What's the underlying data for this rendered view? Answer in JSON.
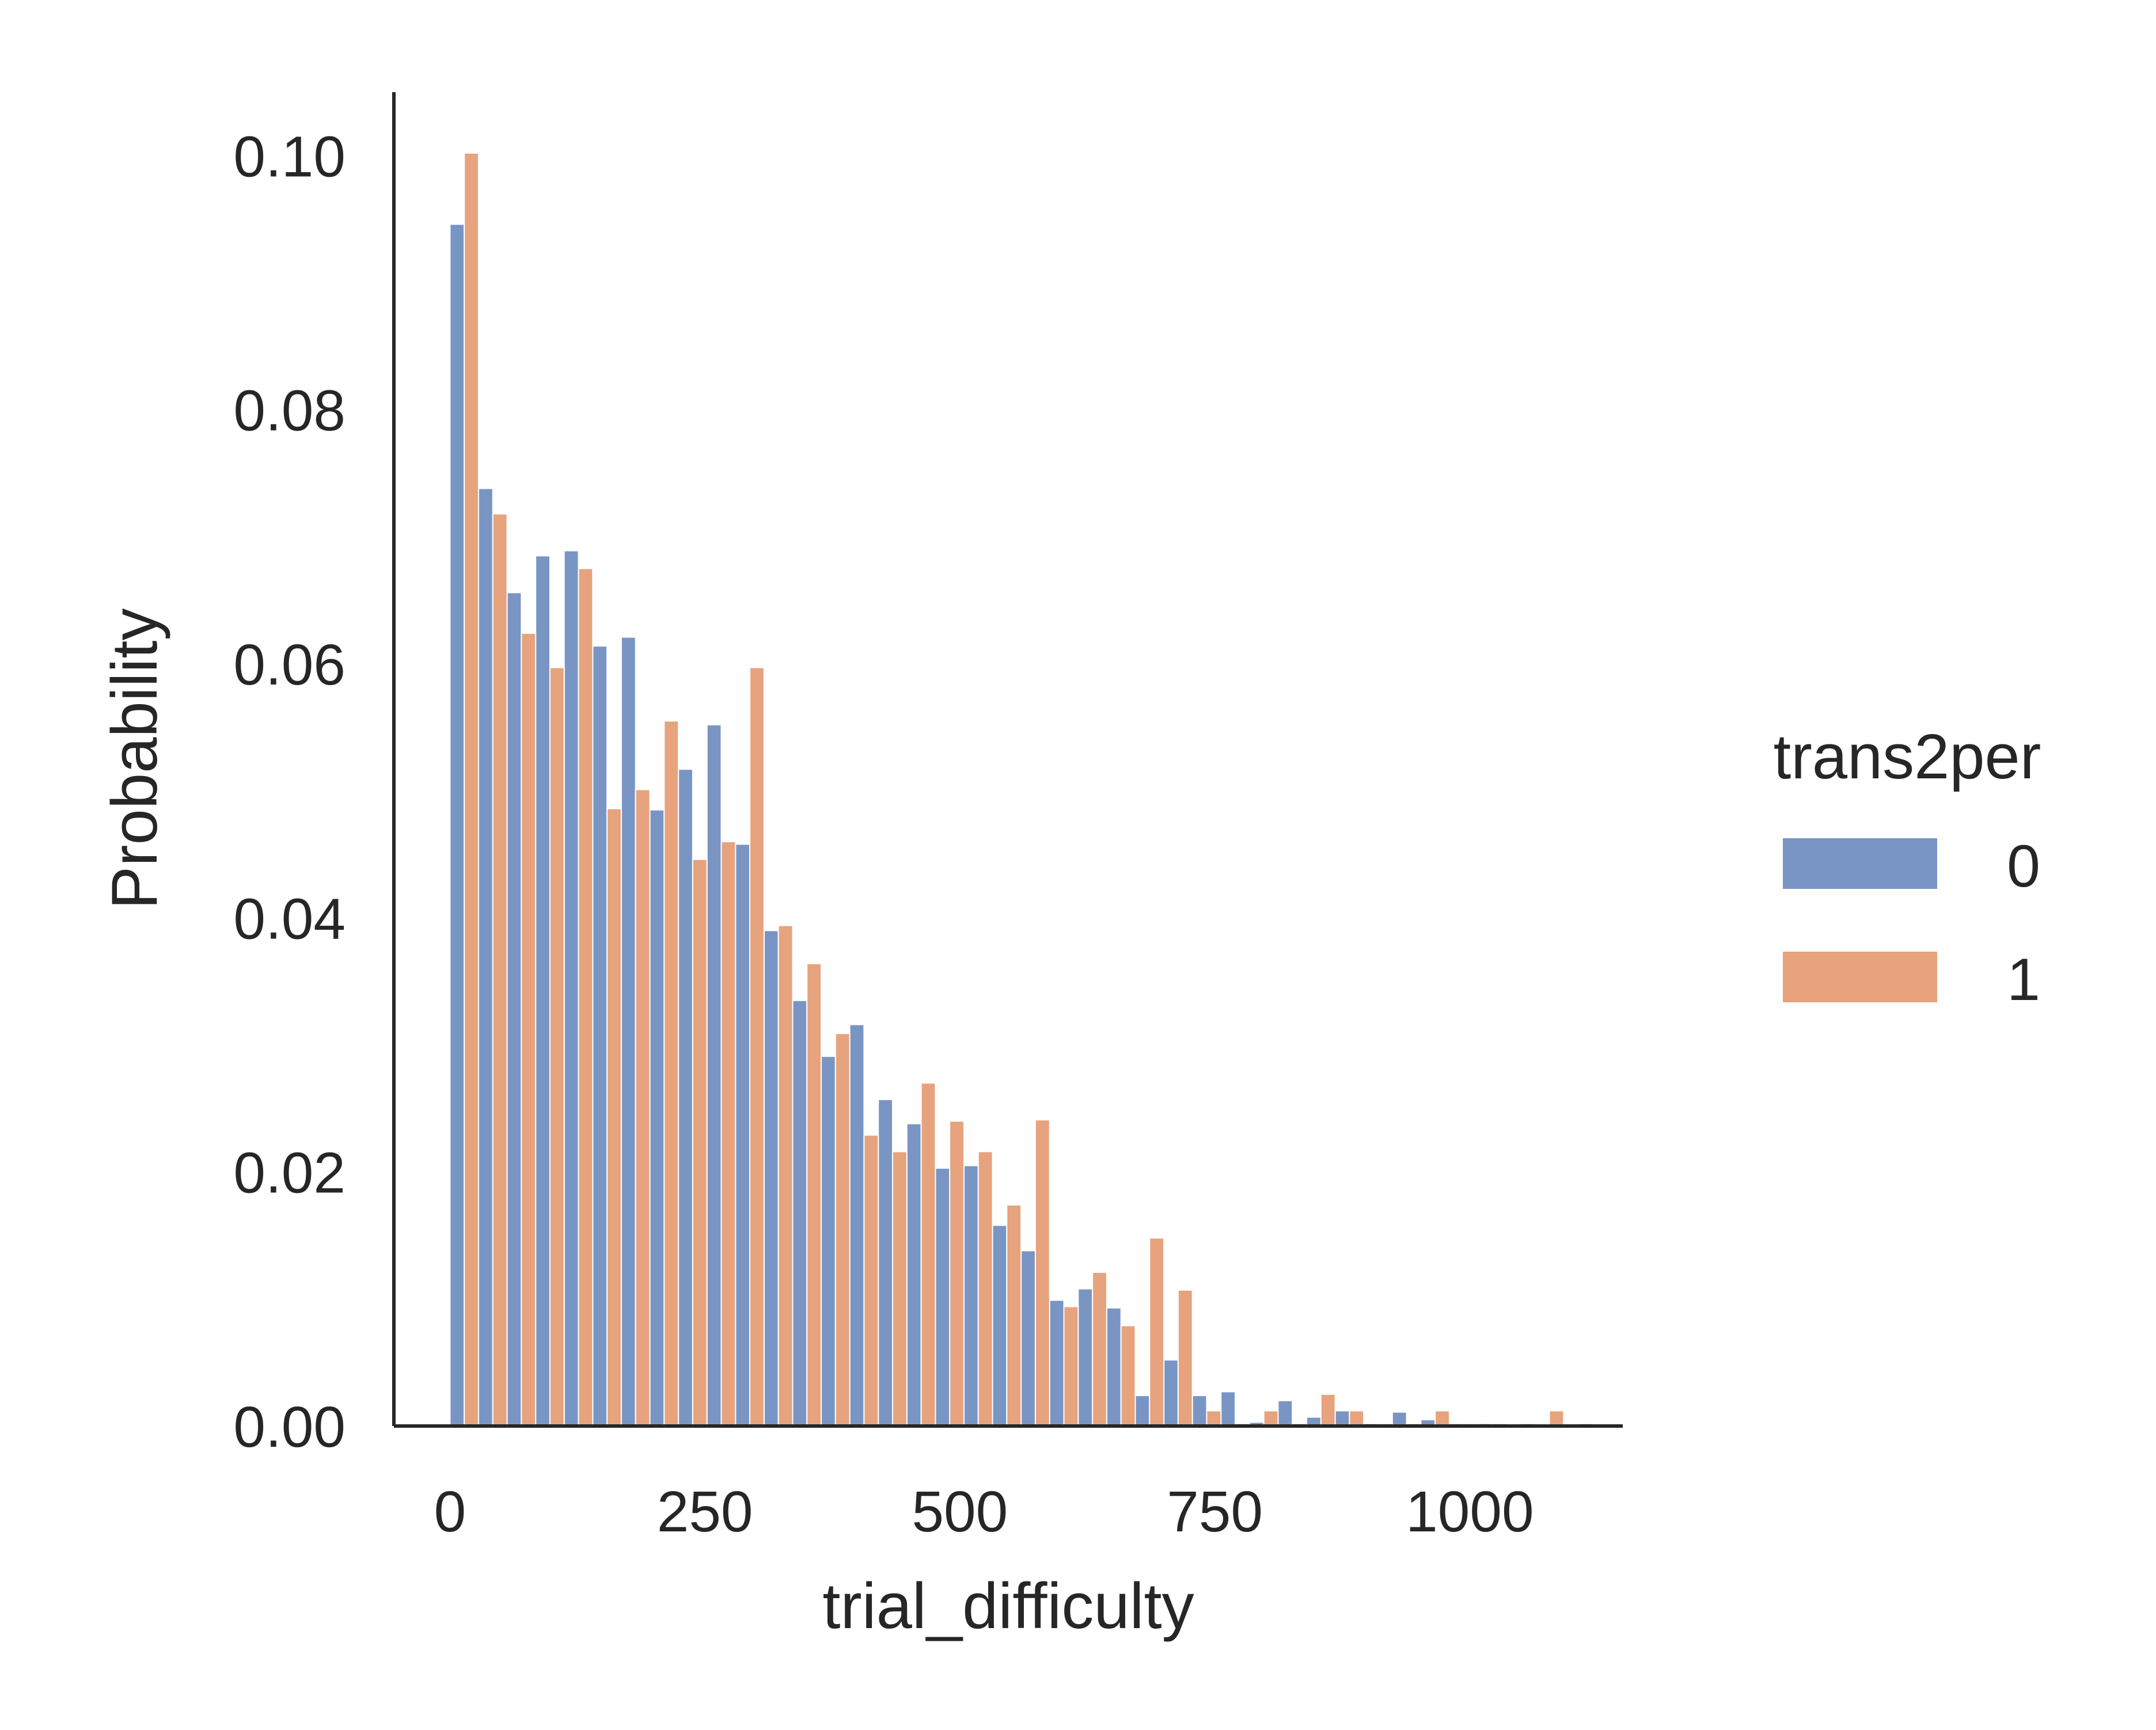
{
  "chart_data": {
    "type": "bar",
    "title": "",
    "xlabel": "trial_difficulty",
    "ylabel": "Probability",
    "xlim": [
      -55,
      1150
    ],
    "ylim": [
      0,
      0.105
    ],
    "xticks": [
      0,
      250,
      500,
      750,
      1000
    ],
    "yticks": [
      0.0,
      0.02,
      0.04,
      0.06,
      0.08,
      0.1
    ],
    "xtick_labels": [
      "0",
      "250",
      "500",
      "750",
      "1000"
    ],
    "ytick_labels": [
      "0.00",
      "0.02",
      "0.04",
      "0.06",
      "0.08",
      "0.10"
    ],
    "grid": false,
    "legend": {
      "title": "trans2per",
      "position": "right",
      "labels": [
        "0",
        "1"
      ]
    },
    "bin_width": 28,
    "bin_starts": [
      0,
      28,
      56,
      84,
      112,
      140,
      168,
      196,
      224,
      252,
      280,
      308,
      336,
      364,
      392,
      420,
      448,
      476,
      504,
      532,
      560,
      588,
      616,
      644,
      672,
      700,
      728,
      756,
      784,
      812,
      840,
      868,
      896,
      924,
      952,
      980,
      1008,
      1036,
      1064,
      1092
    ],
    "series": [
      {
        "name": "0",
        "color": "#4c72b0",
        "values": [
          0.0946,
          0.0738,
          0.0656,
          0.0685,
          0.0689,
          0.0614,
          0.0621,
          0.0485,
          0.0517,
          0.0552,
          0.0458,
          0.039,
          0.0335,
          0.0291,
          0.0316,
          0.0257,
          0.0238,
          0.0203,
          0.0205,
          0.0158,
          0.0138,
          0.0099,
          0.0108,
          0.0093,
          0.0024,
          0.0052,
          0.0024,
          0.0027,
          0.0003,
          0.002,
          0.0007,
          0.0012,
          0.0002,
          0.0011,
          0.0005,
          0.0002,
          0.0002,
          0.0001,
          0.0001,
          0.0001
        ]
      },
      {
        "name": "1",
        "color": "#dd8452",
        "values": [
          0.1002,
          0.0718,
          0.0624,
          0.0597,
          0.0675,
          0.0486,
          0.0501,
          0.0555,
          0.0446,
          0.046,
          0.0597,
          0.0394,
          0.0364,
          0.0309,
          0.0229,
          0.0216,
          0.027,
          0.024,
          0.0216,
          0.0174,
          0.0241,
          0.0094,
          0.0121,
          0.0079,
          0.0148,
          0.0107,
          0.0012,
          0.0002,
          0.0012,
          0.0002,
          0.0025,
          0.0012,
          0.0002,
          0.0002,
          0.0012,
          0.0002,
          0.0002,
          0.0002,
          0.0012,
          0.0002
        ]
      }
    ]
  }
}
